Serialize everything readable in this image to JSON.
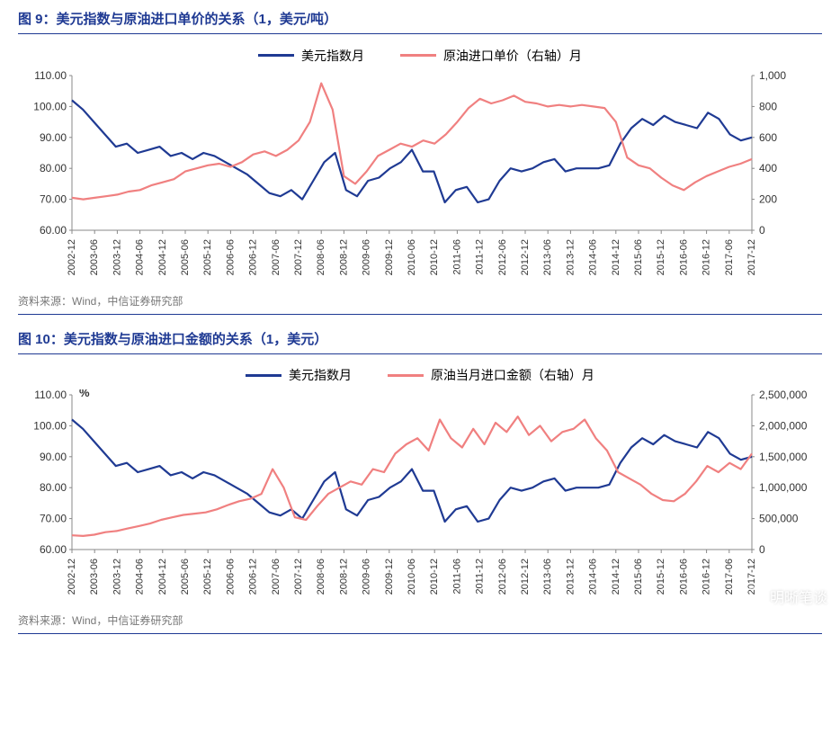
{
  "charts": [
    {
      "id": "chart9",
      "title": "图 9：美元指数与原油进口单价的关系（1，美元/吨）",
      "source": "资料来源：Wind，中信证券研究部",
      "unit_label": "",
      "legend": [
        {
          "label": "美元指数月",
          "color": "#1f3a93"
        },
        {
          "label": "原油进口单价（右轴）月",
          "color": "#f08080"
        }
      ],
      "styling": {
        "line_width": 2.2,
        "axis_color": "#888",
        "tick_font_size": 11,
        "background": "#ffffff"
      },
      "x_categories": [
        "2002-12",
        "2003-06",
        "2003-12",
        "2004-06",
        "2004-12",
        "2005-06",
        "2005-12",
        "2006-06",
        "2006-12",
        "2007-06",
        "2007-12",
        "2008-06",
        "2008-12",
        "2009-06",
        "2009-12",
        "2010-06",
        "2010-12",
        "2011-06",
        "2011-12",
        "2012-06",
        "2012-12",
        "2013-06",
        "2013-12",
        "2014-06",
        "2014-12",
        "2015-06",
        "2015-12",
        "2016-06",
        "2016-12",
        "2017-06",
        "2017-12"
      ],
      "y_left": {
        "min": 60,
        "max": 110,
        "step": 10,
        "ticks": [
          60,
          70,
          80,
          90,
          100,
          110
        ]
      },
      "y_right": {
        "min": 0,
        "max": 1000,
        "step": 200,
        "ticks": [
          0,
          200,
          400,
          600,
          800,
          1000
        ]
      },
      "series": [
        {
          "name": "美元指数月",
          "color": "#1f3a93",
          "axis": "left",
          "points": [
            102,
            99,
            95,
            91,
            87,
            88,
            85,
            86,
            87,
            84,
            85,
            83,
            85,
            84,
            82,
            80,
            78,
            75,
            72,
            71,
            73,
            70,
            76,
            82,
            85,
            73,
            71,
            76,
            77,
            80,
            82,
            86,
            79,
            79,
            69,
            73,
            74,
            69,
            70,
            76,
            80,
            79,
            80,
            82,
            83,
            79,
            80,
            80,
            80,
            81,
            88,
            93,
            96,
            94,
            97,
            95,
            94,
            93,
            98,
            96,
            91,
            89,
            90
          ]
        },
        {
          "name": "原油进口单价（右轴）月",
          "color": "#f08080",
          "axis": "right",
          "points": [
            210,
            200,
            210,
            220,
            230,
            250,
            260,
            290,
            310,
            330,
            380,
            400,
            420,
            430,
            410,
            440,
            490,
            510,
            480,
            520,
            580,
            700,
            950,
            780,
            350,
            300,
            380,
            480,
            520,
            560,
            540,
            580,
            560,
            620,
            700,
            790,
            850,
            820,
            840,
            870,
            830,
            820,
            800,
            810,
            800,
            810,
            800,
            790,
            700,
            470,
            420,
            400,
            340,
            290,
            260,
            310,
            350,
            380,
            410,
            430,
            460
          ]
        }
      ]
    },
    {
      "id": "chart10",
      "title": "图 10：美元指数与原油进口金额的关系（1，美元）",
      "source": "资料来源：Wind，中信证券研究部",
      "unit_label": "%",
      "legend": [
        {
          "label": "美元指数月",
          "color": "#1f3a93"
        },
        {
          "label": "原油当月进口金额（右轴）月",
          "color": "#f08080"
        }
      ],
      "styling": {
        "line_width": 2.2,
        "axis_color": "#888",
        "tick_font_size": 11,
        "background": "#ffffff"
      },
      "x_categories": [
        "2002-12",
        "2003-06",
        "2003-12",
        "2004-06",
        "2004-12",
        "2005-06",
        "2005-12",
        "2006-06",
        "2006-12",
        "2007-06",
        "2007-12",
        "2008-06",
        "2008-12",
        "2009-06",
        "2009-12",
        "2010-06",
        "2010-12",
        "2011-06",
        "2011-12",
        "2012-06",
        "2012-12",
        "2013-06",
        "2013-12",
        "2014-06",
        "2014-12",
        "2015-06",
        "2015-12",
        "2016-06",
        "2016-12",
        "2017-06",
        "2017-12"
      ],
      "y_left": {
        "min": 60,
        "max": 110,
        "step": 10,
        "ticks": [
          60,
          70,
          80,
          90,
          100,
          110
        ]
      },
      "y_right": {
        "min": 0,
        "max": 2500000,
        "step": 500000,
        "ticks": [
          0,
          500000,
          1000000,
          1500000,
          2000000,
          2500000
        ]
      },
      "series": [
        {
          "name": "美元指数月",
          "color": "#1f3a93",
          "axis": "left",
          "points": [
            102,
            99,
            95,
            91,
            87,
            88,
            85,
            86,
            87,
            84,
            85,
            83,
            85,
            84,
            82,
            80,
            78,
            75,
            72,
            71,
            73,
            70,
            76,
            82,
            85,
            73,
            71,
            76,
            77,
            80,
            82,
            86,
            79,
            79,
            69,
            73,
            74,
            69,
            70,
            76,
            80,
            79,
            80,
            82,
            83,
            79,
            80,
            80,
            80,
            81,
            88,
            93,
            96,
            94,
            97,
            95,
            94,
            93,
            98,
            96,
            91,
            89,
            90
          ]
        },
        {
          "name": "原油当月进口金额（右轴）月",
          "color": "#f08080",
          "axis": "right",
          "points": [
            230000,
            220000,
            240000,
            280000,
            300000,
            340000,
            380000,
            420000,
            480000,
            520000,
            560000,
            580000,
            600000,
            650000,
            720000,
            780000,
            820000,
            900000,
            1300000,
            1000000,
            520000,
            480000,
            700000,
            900000,
            1000000,
            1100000,
            1050000,
            1300000,
            1250000,
            1550000,
            1700000,
            1800000,
            1600000,
            2100000,
            1800000,
            1650000,
            1950000,
            1700000,
            2050000,
            1900000,
            2150000,
            1850000,
            2000000,
            1750000,
            1900000,
            1950000,
            2100000,
            1800000,
            1600000,
            1250000,
            1150000,
            1050000,
            900000,
            800000,
            780000,
            900000,
            1100000,
            1350000,
            1250000,
            1400000,
            1300000,
            1550000
          ]
        }
      ]
    }
  ],
  "watermark": "明晰笔谈"
}
